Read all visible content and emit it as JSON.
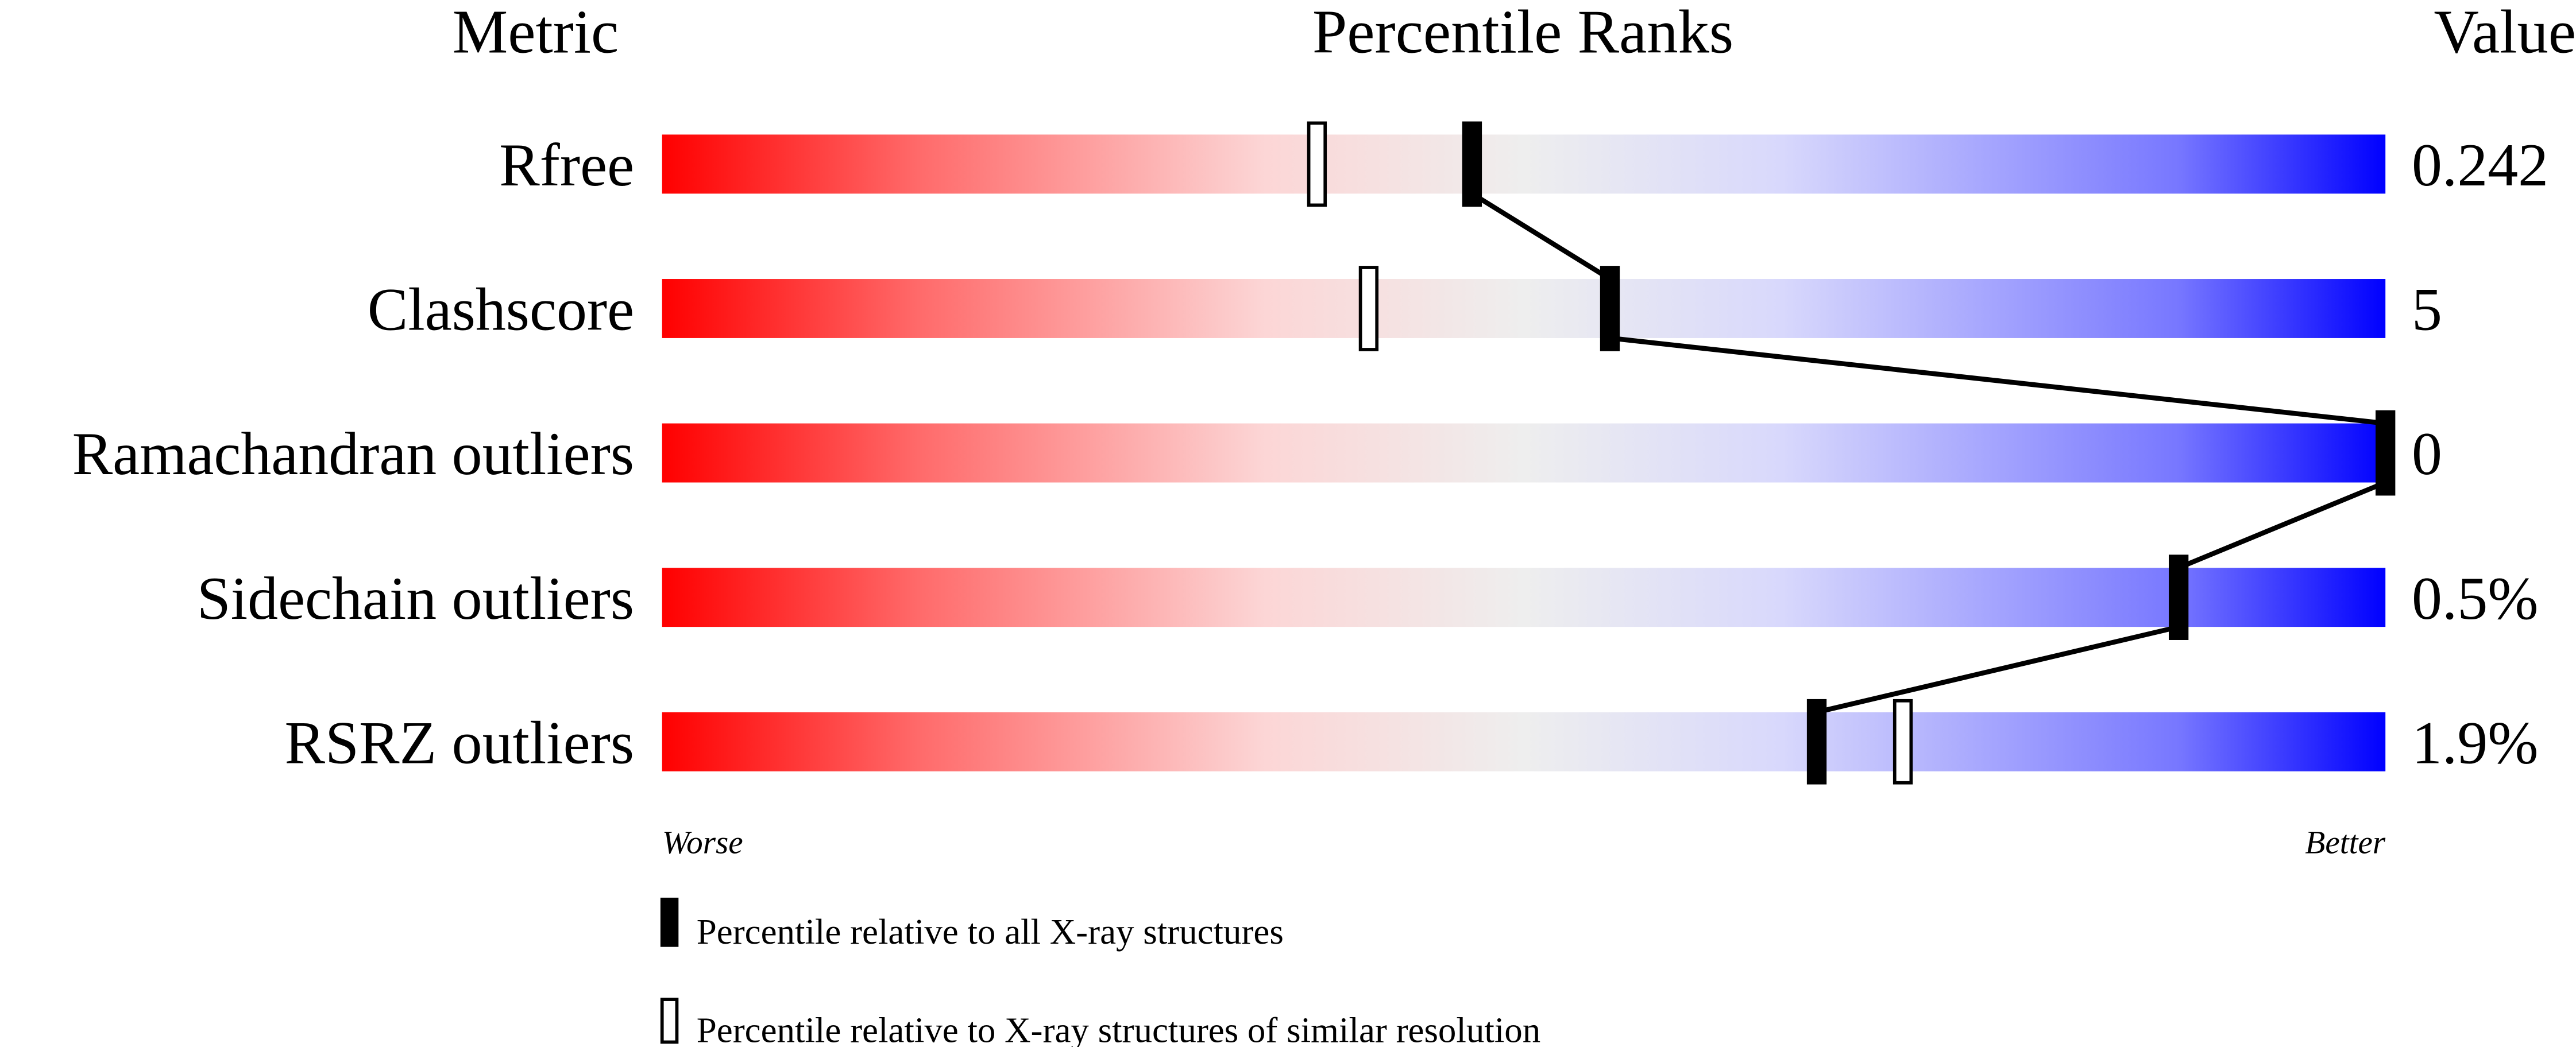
{
  "chart_data": {
    "type": "bar",
    "headers": {
      "metric": "Metric",
      "ranks": "Percentile Ranks",
      "value": "Value"
    },
    "metrics": [
      {
        "name": "Rfree",
        "value": "0.242",
        "percentile_all": 47,
        "percentile_similar": 38
      },
      {
        "name": "Clashscore",
        "value": "5",
        "percentile_all": 55,
        "percentile_similar": 41
      },
      {
        "name": "Ramachandran outliers",
        "value": "0",
        "percentile_all": 100,
        "percentile_similar": null
      },
      {
        "name": "Sidechain outliers",
        "value": "0.5%",
        "percentile_all": 88,
        "percentile_similar": null
      },
      {
        "name": "RSRZ outliers",
        "value": "1.9%",
        "percentile_all": 67,
        "percentile_similar": 72
      }
    ],
    "xlim": [
      0,
      100
    ],
    "axis_labels": {
      "low": "Worse",
      "high": "Better"
    },
    "legend": {
      "all": "Percentile relative to all X-ray structures",
      "similar": "Percentile relative to X-ray structures of similar resolution"
    },
    "colors": {
      "worse": "#ff0000",
      "middle": "#eeeeee",
      "better": "#0000ff",
      "marker": "#000000"
    }
  }
}
